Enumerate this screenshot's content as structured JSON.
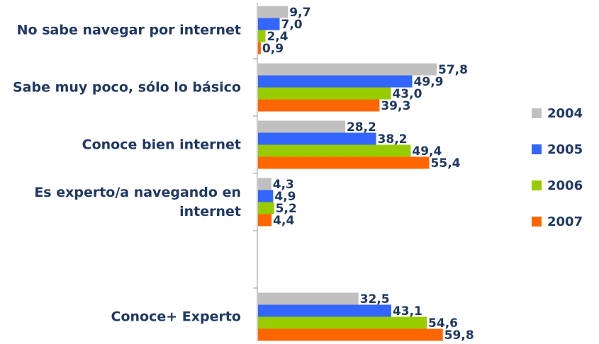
{
  "chart_data": {
    "type": "bar",
    "orientation": "horizontal",
    "categories": [
      "No sabe navegar por internet",
      "Sabe muy poco, sólo lo básico",
      "Conoce bien internet",
      "Es experto/a navegando en internet",
      null,
      "Conoce+ Experto"
    ],
    "series": [
      {
        "name": "2004",
        "color": "#c0c0c0",
        "values": [
          9.7,
          57.8,
          28.2,
          4.3,
          null,
          32.5
        ],
        "value_labels": [
          "9,7",
          "57,8",
          "28,2",
          "4,3",
          null,
          "32,5"
        ]
      },
      {
        "name": "2005",
        "color": "#3366ff",
        "values": [
          7.0,
          49.9,
          38.2,
          4.9,
          null,
          43.1
        ],
        "value_labels": [
          "7,0",
          "49,9",
          "38,2",
          "4,9",
          null,
          "43,1"
        ]
      },
      {
        "name": "2006",
        "color": "#99cc00",
        "values": [
          2.4,
          43.0,
          49.4,
          5.2,
          null,
          54.6
        ],
        "value_labels": [
          "2,4",
          "43,0",
          "49,4",
          "5,2",
          null,
          "54,6"
        ]
      },
      {
        "name": "2007",
        "color": "#ff6600",
        "values": [
          0.9,
          39.3,
          55.4,
          4.4,
          null,
          59.8
        ],
        "value_labels": [
          "0,9",
          "39,3",
          "55,4",
          "4,4",
          null,
          "59,8"
        ]
      }
    ],
    "legend": "right"
  }
}
